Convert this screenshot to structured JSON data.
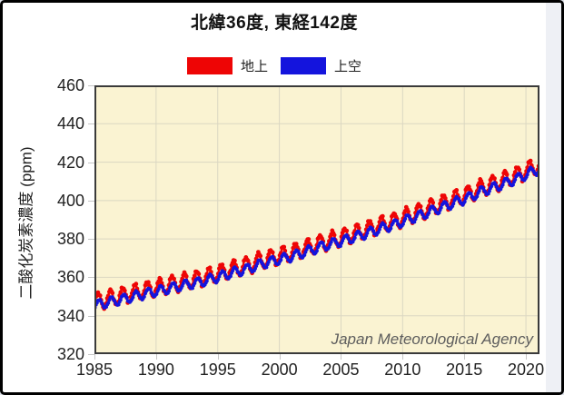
{
  "accent_colors": {
    "surface_red": "#ee0505",
    "aloft_blue": "#1414dd",
    "plot_background": "#faf3d2",
    "grid_line": "#dbd7c2",
    "plot_border": "#3a3a3a",
    "frame_border": "#000000",
    "page_strip": "#eef0f5"
  },
  "chart_data": {
    "type": "line",
    "title": "北緯36度, 東経142度",
    "xlabel": "",
    "ylabel": "二酸化炭素濃度 (ppm)",
    "watermark": "Japan Meteorological Agency",
    "legend_position": "top",
    "grid": true,
    "xlim": [
      1985,
      2021.1
    ],
    "ylim": [
      320,
      460
    ],
    "x_ticks": [
      1985,
      1990,
      1995,
      2000,
      2005,
      2010,
      2015,
      2020
    ],
    "y_ticks": [
      320,
      340,
      360,
      380,
      400,
      420,
      440,
      460
    ],
    "sampling": "monthly",
    "series": [
      {
        "name": "地上",
        "color": "#ee0505",
        "marker_radius": 2.4,
        "line_width": 2.2,
        "noise": 0.65,
        "seasonal_amplitude": 4.2,
        "seasonal_peak_month": 4,
        "annual_start_year": 1985,
        "annual_means": [
          348.0,
          349.4,
          350.8,
          352.4,
          353.9,
          355.2,
          356.8,
          358.1,
          359.3,
          361.0,
          363.0,
          364.8,
          366.4,
          368.8,
          370.4,
          371.9,
          373.8,
          375.9,
          378.1,
          379.8,
          381.6,
          383.6,
          385.7,
          387.8,
          389.6,
          392.2,
          394.3,
          396.7,
          399.1,
          401.4,
          403.8,
          406.9,
          408.9,
          411.3,
          413.8,
          416.8,
          419.5
        ]
      },
      {
        "name": "上空",
        "color": "#1414dd",
        "marker_radius": 2.0,
        "line_width": 2.0,
        "noise": 0.3,
        "seasonal_amplitude": 2.4,
        "seasonal_peak_month": 5,
        "annual_start_year": 1985,
        "annual_means": [
          346.1,
          347.5,
          348.9,
          350.5,
          352.0,
          353.3,
          354.9,
          356.2,
          357.4,
          359.1,
          361.1,
          362.9,
          364.5,
          366.9,
          368.5,
          370.0,
          371.9,
          374.0,
          376.2,
          377.9,
          379.7,
          381.7,
          383.8,
          385.9,
          387.7,
          390.3,
          392.4,
          394.8,
          397.2,
          399.5,
          401.9,
          405.0,
          407.0,
          409.4,
          411.9,
          414.9,
          417.6
        ]
      }
    ]
  }
}
